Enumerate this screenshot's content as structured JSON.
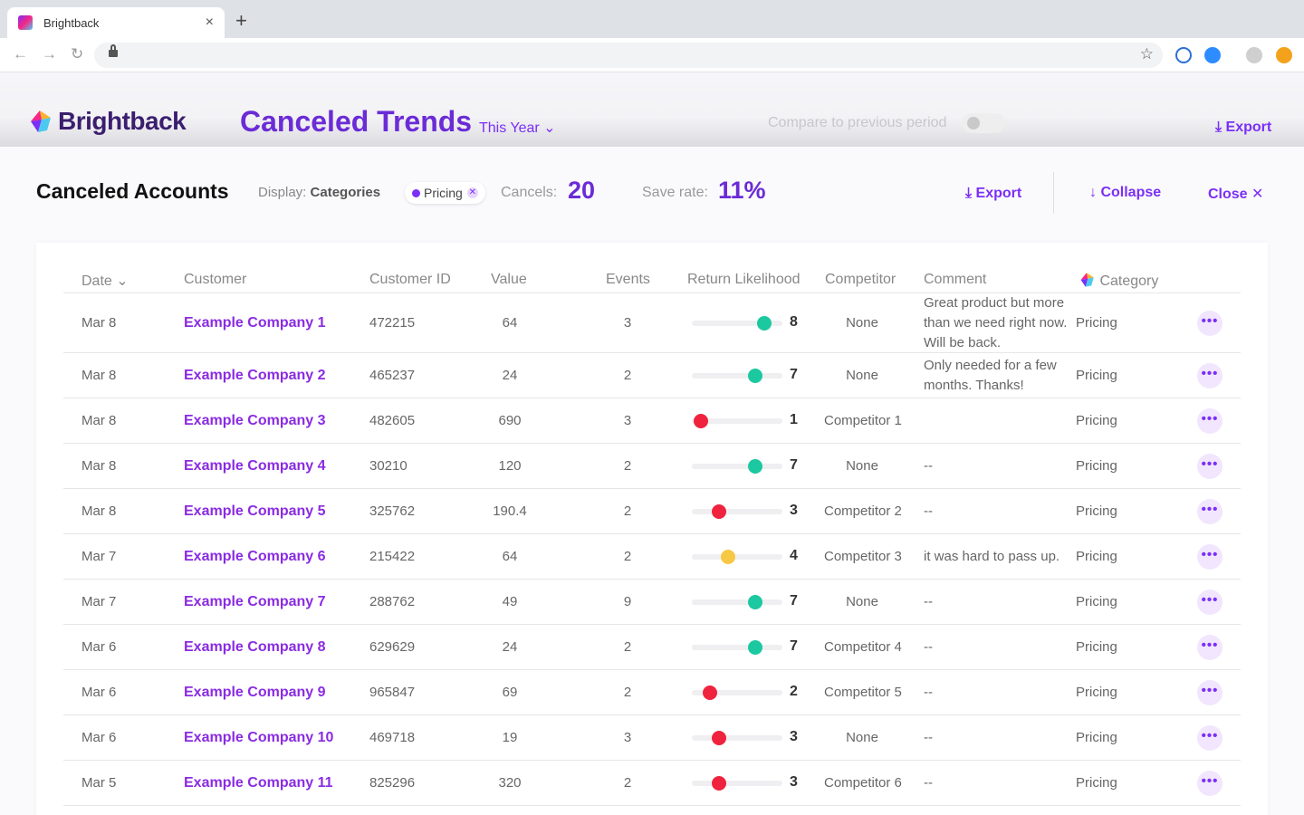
{
  "browser": {
    "tab_title": "Brightback",
    "new_tab": "+",
    "close_tab": "×"
  },
  "header": {
    "logo": "Brightback",
    "title": "Canceled Trends",
    "period": "This Year",
    "compare_label": "Compare to previous period",
    "export": "Export"
  },
  "panel": {
    "title": "Canceled Accounts",
    "display_label": "Display:",
    "display_value": "Categories",
    "filter_chip": "Pricing",
    "cancels_label": "Cancels:",
    "cancels_value": "20",
    "save_label": "Save rate:",
    "save_value": "11%",
    "export": "Export",
    "collapse": "Collapse",
    "close": "Close"
  },
  "table": {
    "columns": {
      "date": "Date",
      "customer": "Customer",
      "customer_id": "Customer ID",
      "value": "Value",
      "events": "Events",
      "return_likelihood": "Return Likelihood",
      "competitor": "Competitor",
      "comment": "Comment",
      "category": "Category"
    },
    "rows": [
      {
        "date": "Mar 8",
        "customer": "Example Company 1",
        "id": "472215",
        "value": "64",
        "events": "3",
        "likelihood": 8,
        "competitor": "None",
        "comment": "Great product but more than we need right now. Will be back.",
        "category": "Pricing",
        "dot_color": "#1cc8a0"
      },
      {
        "date": "Mar 8",
        "customer": "Example Company 2",
        "id": "465237",
        "value": "24",
        "events": "2",
        "likelihood": 7,
        "competitor": "None",
        "comment": "Only needed for a few months. Thanks!",
        "category": "Pricing",
        "dot_color": "#1cc8a0"
      },
      {
        "date": "Mar 8",
        "customer": "Example Company 3",
        "id": "482605",
        "value": "690",
        "events": "3",
        "likelihood": 1,
        "competitor": "Competitor 1",
        "comment": "",
        "category": "Pricing",
        "dot_color": "#f0233e"
      },
      {
        "date": "Mar 8",
        "customer": "Example Company 4",
        "id": "30210",
        "value": "120",
        "events": "2",
        "likelihood": 7,
        "competitor": "None",
        "comment": "--",
        "category": "Pricing",
        "dot_color": "#1cc8a0"
      },
      {
        "date": "Mar 8",
        "customer": "Example Company 5",
        "id": "325762",
        "value": "190.4",
        "events": "2",
        "likelihood": 3,
        "competitor": "Competitor 2",
        "comment": "--",
        "category": "Pricing",
        "dot_color": "#f0233e"
      },
      {
        "date": "Mar 7",
        "customer": "Example Company 6",
        "id": "215422",
        "value": "64",
        "events": "2",
        "likelihood": 4,
        "competitor": "Competitor 3",
        "comment": "it was hard to pass up.",
        "category": "Pricing",
        "dot_color": "#f7c844"
      },
      {
        "date": "Mar 7",
        "customer": "Example Company 7",
        "id": "288762",
        "value": "49",
        "events": "9",
        "likelihood": 7,
        "competitor": "None",
        "comment": "--",
        "category": "Pricing",
        "dot_color": "#1cc8a0"
      },
      {
        "date": "Mar 6",
        "customer": "Example Company 8",
        "id": "629629",
        "value": "24",
        "events": "2",
        "likelihood": 7,
        "competitor": "Competitor 4",
        "comment": "--",
        "category": "Pricing",
        "dot_color": "#1cc8a0"
      },
      {
        "date": "Mar 6",
        "customer": "Example Company 9",
        "id": "965847",
        "value": "69",
        "events": "2",
        "likelihood": 2,
        "competitor": "Competitor 5",
        "comment": "--",
        "category": "Pricing",
        "dot_color": "#f0233e"
      },
      {
        "date": "Mar 6",
        "customer": "Example Company 10",
        "id": "469718",
        "value": "19",
        "events": "3",
        "likelihood": 3,
        "competitor": "None",
        "comment": "--",
        "category": "Pricing",
        "dot_color": "#f0233e"
      },
      {
        "date": "Mar 5",
        "customer": "Example Company 11",
        "id": "825296",
        "value": "320",
        "events": "2",
        "likelihood": 3,
        "competitor": "Competitor 6",
        "comment": "--",
        "category": "Pricing",
        "dot_color": "#f0233e"
      }
    ]
  }
}
